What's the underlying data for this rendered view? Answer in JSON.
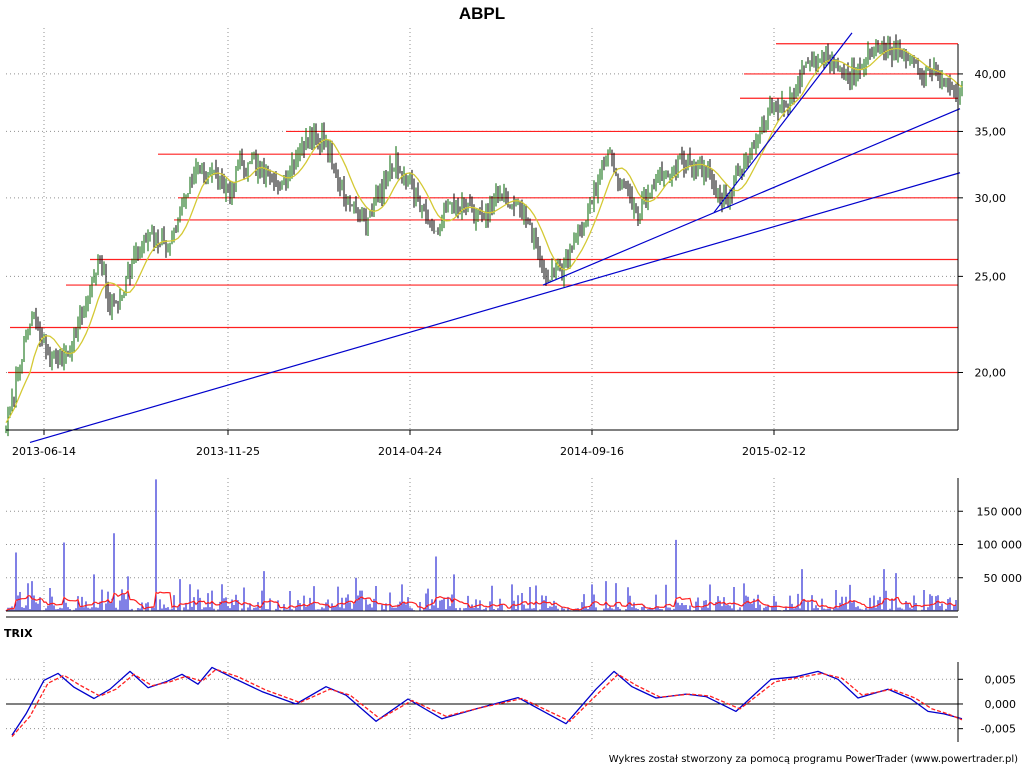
{
  "chart_data": [
    {
      "type": "candlestick",
      "title": "ABPL",
      "x_tick_labels": [
        "2013-06-14",
        "2013-11-25",
        "2014-04-24",
        "2014-09-16",
        "2015-02-12"
      ],
      "y_tick_labels": [
        "20,00",
        "25,00",
        "30,00",
        "35,00",
        "40,00"
      ],
      "y_scale": "log",
      "ylim": [
        17.5,
        44.5
      ],
      "grid": "dotted",
      "close_series": [
        {
          "i": 0,
          "v": 17.8
        },
        {
          "i": 6,
          "v": 18.6
        },
        {
          "i": 14,
          "v": 20.5
        },
        {
          "i": 22,
          "v": 22.0
        },
        {
          "i": 27,
          "v": 22.8
        },
        {
          "i": 32,
          "v": 22.0
        },
        {
          "i": 38,
          "v": 21.2
        },
        {
          "i": 45,
          "v": 20.8
        },
        {
          "i": 52,
          "v": 20.7
        },
        {
          "i": 60,
          "v": 21.0
        },
        {
          "i": 66,
          "v": 21.2
        },
        {
          "i": 72,
          "v": 22.4
        },
        {
          "i": 80,
          "v": 23.5
        },
        {
          "i": 88,
          "v": 25.2
        },
        {
          "i": 93,
          "v": 25.8
        },
        {
          "i": 98,
          "v": 24.9
        },
        {
          "i": 104,
          "v": 23.3
        },
        {
          "i": 112,
          "v": 23.6
        },
        {
          "i": 120,
          "v": 24.8
        },
        {
          "i": 128,
          "v": 26.0
        },
        {
          "i": 136,
          "v": 26.9
        },
        {
          "i": 144,
          "v": 27.4
        },
        {
          "i": 152,
          "v": 27.2
        },
        {
          "i": 160,
          "v": 26.8
        },
        {
          "i": 168,
          "v": 27.5
        },
        {
          "i": 176,
          "v": 29.5
        },
        {
          "i": 184,
          "v": 31.0
        },
        {
          "i": 192,
          "v": 32.2
        },
        {
          "i": 200,
          "v": 31.8
        },
        {
          "i": 208,
          "v": 31.6
        },
        {
          "i": 216,
          "v": 31.2
        },
        {
          "i": 224,
          "v": 30.0
        },
        {
          "i": 232,
          "v": 32.5
        },
        {
          "i": 240,
          "v": 32.0
        },
        {
          "i": 248,
          "v": 32.4
        },
        {
          "i": 256,
          "v": 31.9
        },
        {
          "i": 264,
          "v": 31.3
        },
        {
          "i": 272,
          "v": 31.4
        },
        {
          "i": 280,
          "v": 31.3
        },
        {
          "i": 288,
          "v": 32.4
        },
        {
          "i": 296,
          "v": 33.8
        },
        {
          "i": 304,
          "v": 34.8
        },
        {
          "i": 312,
          "v": 34.3
        },
        {
          "i": 318,
          "v": 34.5
        },
        {
          "i": 324,
          "v": 33.2
        },
        {
          "i": 330,
          "v": 31.5
        },
        {
          "i": 336,
          "v": 30.6
        },
        {
          "i": 344,
          "v": 29.5
        },
        {
          "i": 352,
          "v": 29.0
        },
        {
          "i": 360,
          "v": 28.6
        },
        {
          "i": 368,
          "v": 29.5
        },
        {
          "i": 376,
          "v": 30.6
        },
        {
          "i": 384,
          "v": 32.0
        },
        {
          "i": 390,
          "v": 32.5
        },
        {
          "i": 396,
          "v": 31.8
        },
        {
          "i": 404,
          "v": 31.0
        },
        {
          "i": 412,
          "v": 29.9
        },
        {
          "i": 420,
          "v": 28.8
        },
        {
          "i": 428,
          "v": 27.3
        },
        {
          "i": 436,
          "v": 28.8
        },
        {
          "i": 444,
          "v": 29.4
        },
        {
          "i": 452,
          "v": 29.6
        },
        {
          "i": 460,
          "v": 29.2
        },
        {
          "i": 468,
          "v": 29.0
        },
        {
          "i": 476,
          "v": 28.6
        },
        {
          "i": 484,
          "v": 29.3
        },
        {
          "i": 492,
          "v": 30.2
        },
        {
          "i": 500,
          "v": 29.8
        },
        {
          "i": 508,
          "v": 29.6
        },
        {
          "i": 516,
          "v": 29.2
        },
        {
          "i": 524,
          "v": 28.0
        },
        {
          "i": 530,
          "v": 26.6
        },
        {
          "i": 536,
          "v": 25.8
        },
        {
          "i": 542,
          "v": 24.8
        },
        {
          "i": 548,
          "v": 25.5
        },
        {
          "i": 554,
          "v": 25.2
        },
        {
          "i": 560,
          "v": 25.9
        },
        {
          "i": 566,
          "v": 26.9
        },
        {
          "i": 572,
          "v": 27.8
        },
        {
          "i": 578,
          "v": 28.2
        },
        {
          "i": 584,
          "v": 29.3
        },
        {
          "i": 590,
          "v": 30.8
        },
        {
          "i": 596,
          "v": 32.5
        },
        {
          "i": 602,
          "v": 33.4
        },
        {
          "i": 608,
          "v": 32.2
        },
        {
          "i": 614,
          "v": 31.0
        },
        {
          "i": 620,
          "v": 30.3
        },
        {
          "i": 626,
          "v": 29.6
        },
        {
          "i": 632,
          "v": 28.9
        },
        {
          "i": 638,
          "v": 29.8
        },
        {
          "i": 644,
          "v": 30.6
        },
        {
          "i": 650,
          "v": 31.4
        },
        {
          "i": 656,
          "v": 31.8
        },
        {
          "i": 662,
          "v": 31.5
        },
        {
          "i": 668,
          "v": 32.0
        },
        {
          "i": 674,
          "v": 33.0
        },
        {
          "i": 680,
          "v": 32.6
        },
        {
          "i": 686,
          "v": 32.2
        },
        {
          "i": 692,
          "v": 32.0
        },
        {
          "i": 698,
          "v": 32.3
        },
        {
          "i": 704,
          "v": 31.8
        },
        {
          "i": 710,
          "v": 30.6
        },
        {
          "i": 716,
          "v": 29.6
        },
        {
          "i": 722,
          "v": 30.2
        },
        {
          "i": 728,
          "v": 31.0
        },
        {
          "i": 734,
          "v": 32.0
        },
        {
          "i": 740,
          "v": 32.4
        },
        {
          "i": 746,
          "v": 33.6
        },
        {
          "i": 752,
          "v": 34.4
        },
        {
          "i": 758,
          "v": 35.6
        },
        {
          "i": 764,
          "v": 36.8
        },
        {
          "i": 770,
          "v": 37.2
        },
        {
          "i": 776,
          "v": 37.1
        },
        {
          "i": 782,
          "v": 37.6
        },
        {
          "i": 788,
          "v": 38.3
        },
        {
          "i": 794,
          "v": 39.6
        },
        {
          "i": 800,
          "v": 41.5
        },
        {
          "i": 806,
          "v": 40.8
        },
        {
          "i": 812,
          "v": 41.6
        },
        {
          "i": 818,
          "v": 41.2
        },
        {
          "i": 824,
          "v": 41.5
        },
        {
          "i": 830,
          "v": 40.8
        },
        {
          "i": 836,
          "v": 40.3
        },
        {
          "i": 842,
          "v": 39.8
        },
        {
          "i": 848,
          "v": 40.4
        },
        {
          "i": 854,
          "v": 41.0
        },
        {
          "i": 860,
          "v": 41.6
        },
        {
          "i": 866,
          "v": 42.0
        },
        {
          "i": 872,
          "v": 42.6
        },
        {
          "i": 878,
          "v": 42.8
        },
        {
          "i": 884,
          "v": 42.4
        },
        {
          "i": 890,
          "v": 42.1
        },
        {
          "i": 896,
          "v": 41.7
        },
        {
          "i": 902,
          "v": 41.2
        },
        {
          "i": 908,
          "v": 40.8
        },
        {
          "i": 914,
          "v": 40.4
        },
        {
          "i": 920,
          "v": 39.8
        },
        {
          "i": 926,
          "v": 40.3
        },
        {
          "i": 932,
          "v": 40.1
        },
        {
          "i": 938,
          "v": 39.4
        },
        {
          "i": 944,
          "v": 38.4
        },
        {
          "i": 950,
          "v": 37.8
        },
        {
          "i": 956,
          "v": 38.8
        }
      ],
      "horizontal_lines": [
        {
          "y": 20.0,
          "from": 8
        },
        {
          "y": 22.2,
          "from": 10
        },
        {
          "y": 24.5,
          "from": 66
        },
        {
          "y": 26.0,
          "from": 90
        },
        {
          "y": 28.5,
          "from": 174
        },
        {
          "y": 30.0,
          "from": 178
        },
        {
          "y": 33.2,
          "from": 158
        },
        {
          "y": 35.0,
          "from": 286
        },
        {
          "y": 37.8,
          "from": 740
        },
        {
          "y": 40.0,
          "from": 744
        },
        {
          "y": 42.9,
          "from": 776
        }
      ],
      "trend_lines": [
        {
          "from": [
            30,
            17.0
          ],
          "to": [
            960,
            31.8
          ]
        },
        {
          "from": [
            543,
            24.5
          ],
          "to": [
            960,
            36.9
          ]
        },
        {
          "from": [
            714,
            29.0
          ],
          "to": [
            852,
            44.0
          ]
        }
      ],
      "colors": {
        "bull": "#006400",
        "bear": "#000000",
        "ma": "#d4c934",
        "level": "#ff2020",
        "trend": "#0000cc"
      }
    },
    {
      "type": "bar",
      "y_tick_labels": [
        "50 000",
        "100 000",
        "150 000"
      ],
      "ylim": [
        0,
        200000
      ],
      "spikes": [
        {
          "i": 11,
          "v": 88000
        },
        {
          "i": 27,
          "v": 45000
        },
        {
          "i": 59,
          "v": 103000
        },
        {
          "i": 88,
          "v": 55000
        },
        {
          "i": 109,
          "v": 117000
        },
        {
          "i": 122,
          "v": 52000
        },
        {
          "i": 150,
          "v": 198000
        },
        {
          "i": 175,
          "v": 48000
        },
        {
          "i": 258,
          "v": 60000
        },
        {
          "i": 350,
          "v": 50000
        },
        {
          "i": 430,
          "v": 82000
        },
        {
          "i": 448,
          "v": 55000
        },
        {
          "i": 600,
          "v": 45000
        },
        {
          "i": 670,
          "v": 107000
        },
        {
          "i": 796,
          "v": 63000
        },
        {
          "i": 878,
          "v": 63000
        },
        {
          "i": 890,
          "v": 57000
        }
      ],
      "colors": {
        "bar": "#0000cc",
        "avg": "#ff2020"
      }
    },
    {
      "type": "line",
      "panel_label": "TRIX",
      "y_tick_labels": [
        "0,005",
        "0,000",
        "-0,005"
      ],
      "ylim": [
        -0.0077,
        0.0085
      ],
      "zero_line": true,
      "series": [
        {
          "color": "#0000cc",
          "points": [
            {
              "i": 6,
              "v": -0.0063
            },
            {
              "i": 20,
              "v": -0.002
            },
            {
              "i": 38,
              "v": 0.0048
            },
            {
              "i": 52,
              "v": 0.0062
            },
            {
              "i": 68,
              "v": 0.0034
            },
            {
              "i": 88,
              "v": 0.0011
            },
            {
              "i": 104,
              "v": 0.003
            },
            {
              "i": 124,
              "v": 0.0066
            },
            {
              "i": 142,
              "v": 0.0033
            },
            {
              "i": 160,
              "v": 0.0045
            },
            {
              "i": 176,
              "v": 0.006
            },
            {
              "i": 192,
              "v": 0.004
            },
            {
              "i": 206,
              "v": 0.0074
            },
            {
              "i": 228,
              "v": 0.0052
            },
            {
              "i": 256,
              "v": 0.0025
            },
            {
              "i": 290,
              "v": 0.0
            },
            {
              "i": 320,
              "v": 0.0035
            },
            {
              "i": 340,
              "v": 0.0018
            },
            {
              "i": 370,
              "v": -0.0035
            },
            {
              "i": 402,
              "v": 0.001
            },
            {
              "i": 436,
              "v": -0.003
            },
            {
              "i": 470,
              "v": -0.001
            },
            {
              "i": 512,
              "v": 0.0013
            },
            {
              "i": 560,
              "v": -0.004
            },
            {
              "i": 590,
              "v": 0.003
            },
            {
              "i": 608,
              "v": 0.0066
            },
            {
              "i": 626,
              "v": 0.0035
            },
            {
              "i": 650,
              "v": 0.0012
            },
            {
              "i": 680,
              "v": 0.002
            },
            {
              "i": 700,
              "v": 0.0015
            },
            {
              "i": 730,
              "v": -0.0015
            },
            {
              "i": 765,
              "v": 0.005
            },
            {
              "i": 790,
              "v": 0.0055
            },
            {
              "i": 812,
              "v": 0.0066
            },
            {
              "i": 832,
              "v": 0.005
            },
            {
              "i": 852,
              "v": 0.0012
            },
            {
              "i": 882,
              "v": 0.003
            },
            {
              "i": 905,
              "v": 0.001
            },
            {
              "i": 922,
              "v": -0.0015
            },
            {
              "i": 938,
              "v": -0.002
            },
            {
              "i": 956,
              "v": -0.003
            }
          ]
        },
        {
          "color": "#ff2020",
          "dashed": true,
          "points": [
            {
              "i": 6,
              "v": -0.0066
            },
            {
              "i": 24,
              "v": -0.0025
            },
            {
              "i": 42,
              "v": 0.0042
            },
            {
              "i": 58,
              "v": 0.0058
            },
            {
              "i": 74,
              "v": 0.0038
            },
            {
              "i": 94,
              "v": 0.0016
            },
            {
              "i": 110,
              "v": 0.003
            },
            {
              "i": 128,
              "v": 0.006
            },
            {
              "i": 146,
              "v": 0.0037
            },
            {
              "i": 164,
              "v": 0.0045
            },
            {
              "i": 180,
              "v": 0.0056
            },
            {
              "i": 196,
              "v": 0.0046
            },
            {
              "i": 210,
              "v": 0.007
            },
            {
              "i": 232,
              "v": 0.0055
            },
            {
              "i": 260,
              "v": 0.0028
            },
            {
              "i": 294,
              "v": 0.0003
            },
            {
              "i": 324,
              "v": 0.003
            },
            {
              "i": 344,
              "v": 0.0018
            },
            {
              "i": 374,
              "v": -0.003
            },
            {
              "i": 406,
              "v": 0.0007
            },
            {
              "i": 440,
              "v": -0.0025
            },
            {
              "i": 474,
              "v": -0.0008
            },
            {
              "i": 516,
              "v": 0.0011
            },
            {
              "i": 564,
              "v": -0.0035
            },
            {
              "i": 594,
              "v": 0.0025
            },
            {
              "i": 612,
              "v": 0.006
            },
            {
              "i": 630,
              "v": 0.0038
            },
            {
              "i": 654,
              "v": 0.0014
            },
            {
              "i": 684,
              "v": 0.002
            },
            {
              "i": 704,
              "v": 0.0016
            },
            {
              "i": 734,
              "v": -0.001
            },
            {
              "i": 769,
              "v": 0.0045
            },
            {
              "i": 794,
              "v": 0.0054
            },
            {
              "i": 816,
              "v": 0.0062
            },
            {
              "i": 836,
              "v": 0.0052
            },
            {
              "i": 856,
              "v": 0.0018
            },
            {
              "i": 886,
              "v": 0.003
            },
            {
              "i": 909,
              "v": 0.0012
            },
            {
              "i": 926,
              "v": -0.001
            },
            {
              "i": 942,
              "v": -0.002
            },
            {
              "i": 956,
              "v": -0.0032
            }
          ]
        }
      ]
    }
  ],
  "footer": "Wykres został stworzony za pomocą programu PowerTrader (www.powertrader.pl)"
}
